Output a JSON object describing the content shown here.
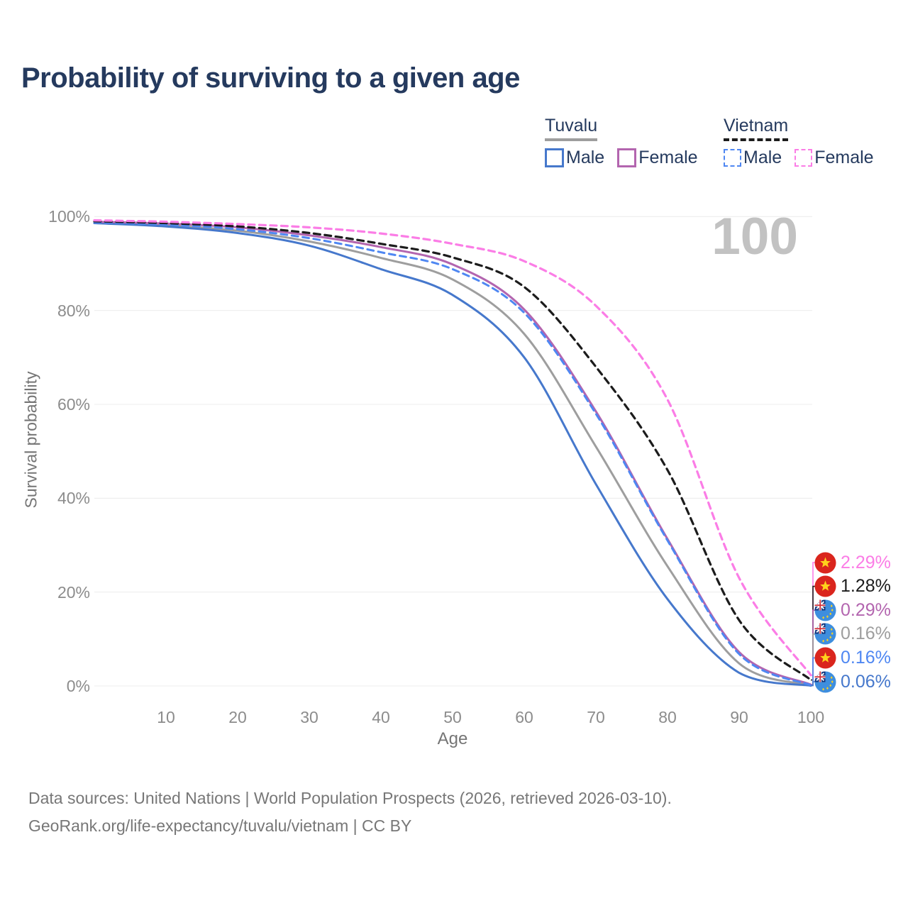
{
  "header": {
    "title": "Probability of surviving to a given age"
  },
  "legend": {
    "groups": [
      {
        "id": "tuvalu",
        "label": "Tuvalu",
        "line_style": "solid",
        "line_color": "#9e9e9e",
        "items": [
          {
            "id": "tuvalu-male",
            "label": "Male",
            "swatch_color": "#4678cc",
            "swatch_style": "solid"
          },
          {
            "id": "tuvalu-female",
            "label": "Female",
            "swatch_color": "#b365af",
            "swatch_style": "solid"
          }
        ]
      },
      {
        "id": "vietnam",
        "label": "Vietnam",
        "line_style": "dashed",
        "line_color": "#1c1c1c",
        "items": [
          {
            "id": "vietnam-male",
            "label": "Male",
            "swatch_color": "#4f87f2",
            "swatch_style": "dashed"
          },
          {
            "id": "vietnam-female",
            "label": "Female",
            "swatch_color": "#fb7de6",
            "swatch_style": "dashed"
          }
        ]
      }
    ]
  },
  "chart_data": {
    "type": "line",
    "title": "Probability of surviving to a given age",
    "xlabel": "Age",
    "ylabel": "Survival probability",
    "watermark": "100",
    "xlim": [
      0,
      100
    ],
    "ylim": [
      0,
      100
    ],
    "grid": "horizontal",
    "legend_position": "top-right",
    "x": [
      0,
      10,
      20,
      30,
      40,
      50,
      60,
      70,
      80,
      90,
      100
    ],
    "x_ticks": [
      10,
      20,
      30,
      40,
      50,
      60,
      70,
      80,
      90,
      100
    ],
    "y_ticks": [
      0,
      20,
      40,
      60,
      80,
      100
    ],
    "y_tick_suffix": "%",
    "series": [
      {
        "id": "tuvalu-all",
        "name": "Tuvalu (both sexes)",
        "color": "#9e9e9e",
        "style": "solid",
        "width": 3,
        "values": [
          98.8,
          98.1,
          97.0,
          94.7,
          91.2,
          86.6,
          75.0,
          51.0,
          25.5,
          4.8,
          0.16
        ],
        "end_label": "0.16%"
      },
      {
        "id": "tuvalu-male",
        "name": "Tuvalu Male",
        "color": "#4678cc",
        "style": "solid",
        "width": 3,
        "values": [
          98.6,
          97.9,
          96.5,
          93.8,
          88.8,
          83.3,
          70.0,
          43.0,
          18.5,
          2.8,
          0.06
        ],
        "end_label": "0.06%"
      },
      {
        "id": "tuvalu-female",
        "name": "Tuvalu Female",
        "color": "#b365af",
        "style": "solid",
        "width": 3,
        "values": [
          98.9,
          98.5,
          97.7,
          96.0,
          93.5,
          89.8,
          80.2,
          58.5,
          31.3,
          7.2,
          0.29
        ],
        "end_label": "0.29%"
      },
      {
        "id": "vietnam-male",
        "name": "Vietnam Male",
        "color": "#4f87f2",
        "style": "dashed",
        "width": 3,
        "values": [
          98.8,
          98.3,
          97.3,
          95.4,
          92.4,
          88.8,
          79.5,
          58.0,
          31.0,
          6.8,
          0.16
        ],
        "end_label": "0.16%"
      },
      {
        "id": "vietnam-all",
        "name": "Vietnam (both sexes)",
        "color": "#1c1c1c",
        "style": "dashed",
        "width": 3.2,
        "values": [
          99.0,
          98.6,
          97.9,
          96.5,
          94.2,
          91.3,
          85.0,
          68.0,
          46.0,
          14.0,
          1.28
        ],
        "end_label": "1.28%"
      },
      {
        "id": "vietnam-female",
        "name": "Vietnam Female",
        "color": "#fb7de6",
        "style": "dashed",
        "width": 3.2,
        "values": [
          99.2,
          98.9,
          98.4,
          97.7,
          96.4,
          94.2,
          90.5,
          81.0,
          61.0,
          23.0,
          2.29
        ],
        "end_label": "2.29%"
      }
    ]
  },
  "end_labels": [
    {
      "series": "vietnam-female",
      "flag": "vietnam",
      "value": "2.29%",
      "color": "#fb7de6"
    },
    {
      "series": "vietnam-all",
      "flag": "vietnam",
      "value": "1.28%",
      "color": "#1c1c1c"
    },
    {
      "series": "tuvalu-female",
      "flag": "tuvalu",
      "value": "0.29%",
      "color": "#b365af"
    },
    {
      "series": "tuvalu-all",
      "flag": "tuvalu",
      "value": "0.16%",
      "color": "#9e9e9e"
    },
    {
      "series": "vietnam-male",
      "flag": "vietnam",
      "value": "0.16%",
      "color": "#4f87f2"
    },
    {
      "series": "tuvalu-male",
      "flag": "tuvalu",
      "value": "0.06%",
      "color": "#4678cc"
    }
  ],
  "footer": {
    "line1": "Data sources: United Nations | World Population Prospects (2026, retrieved 2026-03-10).",
    "line2": "GeoRank.org/life-expectancy/tuvalu/vietnam | CC BY"
  }
}
